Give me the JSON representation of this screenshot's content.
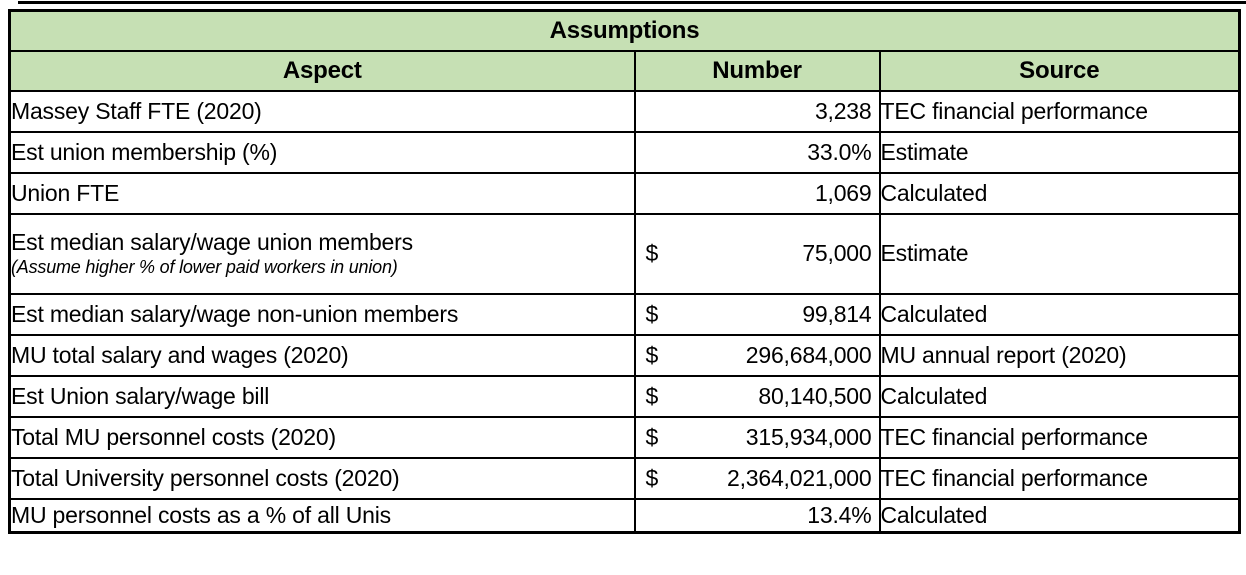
{
  "table": {
    "title": "Assumptions",
    "columns": [
      "Aspect",
      "Number",
      "Source"
    ],
    "rows": [
      {
        "aspect": "Massey Staff FTE (2020)",
        "note": "",
        "currency": "",
        "number": "3,238",
        "source": "TEC financial performance"
      },
      {
        "aspect": "Est union membership (%)",
        "note": "",
        "currency": "",
        "number": "33.0%",
        "source": "Estimate"
      },
      {
        "aspect": "Union FTE",
        "note": "",
        "currency": "",
        "number": "1,069",
        "source": "Calculated"
      },
      {
        "aspect": "Est median salary/wage union members",
        "note": "(Assume higher % of lower paid workers in union)",
        "currency": "$",
        "number": "75,000",
        "source": "Estimate"
      },
      {
        "aspect": "Est median salary/wage non-union members",
        "note": "",
        "currency": "$",
        "number": "99,814",
        "source": "Calculated"
      },
      {
        "aspect": "MU total salary and wages (2020)",
        "note": "",
        "currency": "$",
        "number": "296,684,000",
        "source": "MU annual report (2020)"
      },
      {
        "aspect": "Est Union salary/wage bill",
        "note": "",
        "currency": "$",
        "number": "80,140,500",
        "source": "Calculated"
      },
      {
        "aspect": "Total MU personnel costs (2020)",
        "note": "",
        "currency": "$",
        "number": "315,934,000",
        "source": "TEC financial performance"
      },
      {
        "aspect": "Total University personnel costs (2020)",
        "note": "",
        "currency": "$",
        "number": "2,364,021,000",
        "source": "TEC financial performance"
      },
      {
        "aspect": "MU personnel costs as a % of all Unis",
        "note": "",
        "currency": "",
        "number": "13.4%",
        "source": "Calculated"
      }
    ],
    "colors": {
      "header_bg": "#c6e0b4",
      "border": "#000000",
      "text": "#000000"
    }
  }
}
